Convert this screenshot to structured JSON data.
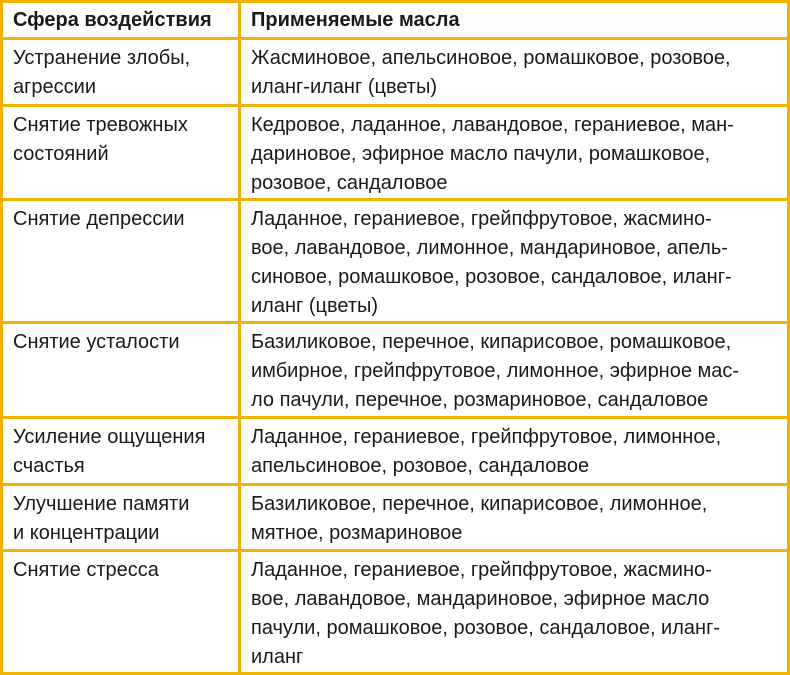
{
  "table": {
    "header": [
      "Сфера воздействия",
      "Применяемые масла"
    ],
    "rows": [
      [
        [
          "Устранение злобы,",
          "агрессии"
        ],
        [
          "Жасминовое, апельсиновое, ромашковое, розовое,",
          "иланг-иланг (цветы)"
        ]
      ],
      [
        [
          "Снятие тревожных",
          "состояний"
        ],
        [
          "Кедровое, ладанное, лавандовое, гераниевое, ман-",
          "дариновое, эфирное масло пачули, ромашковое,",
          "розовое, сандаловое"
        ]
      ],
      [
        [
          "Снятие депрессии"
        ],
        [
          "Ладанное, гераниевое, грейпфрутовое, жасмино-",
          "вое, лавандовое, лимонное, мандариновое, апель-",
          "синовое, ромашковое, розовое, сандаловое, иланг-",
          "иланг (цветы)"
        ]
      ],
      [
        [
          "Снятие усталости"
        ],
        [
          "Базиликовое, перечное, кипарисовое, ромашковое,",
          "имбирное, грейпфрутовое, лимонное, эфирное мас-",
          "ло пачули, перечное, розмариновое, сандаловое"
        ]
      ],
      [
        [
          "Усиление ощущения",
          "счастья"
        ],
        [
          "Ладанное, гераниевое, грейпфрутовое, лимонное,",
          "апельсиновое, розовое, сандаловое"
        ]
      ],
      [
        [
          "Улучшение памяти",
          "и концентрации"
        ],
        [
          "Базиликовое, перечное, кипарисовое, лимонное,",
          "мятное, розмариновое"
        ]
      ],
      [
        [
          "Снятие стресса"
        ],
        [
          "Ладанное, гераниевое, грейпфрутовое, жасмино-",
          "вое, лавандовое, мандариновое, эфирное масло",
          "пачули, ромашковое, розовое, сандаловое, иланг-",
          "иланг"
        ]
      ]
    ]
  }
}
